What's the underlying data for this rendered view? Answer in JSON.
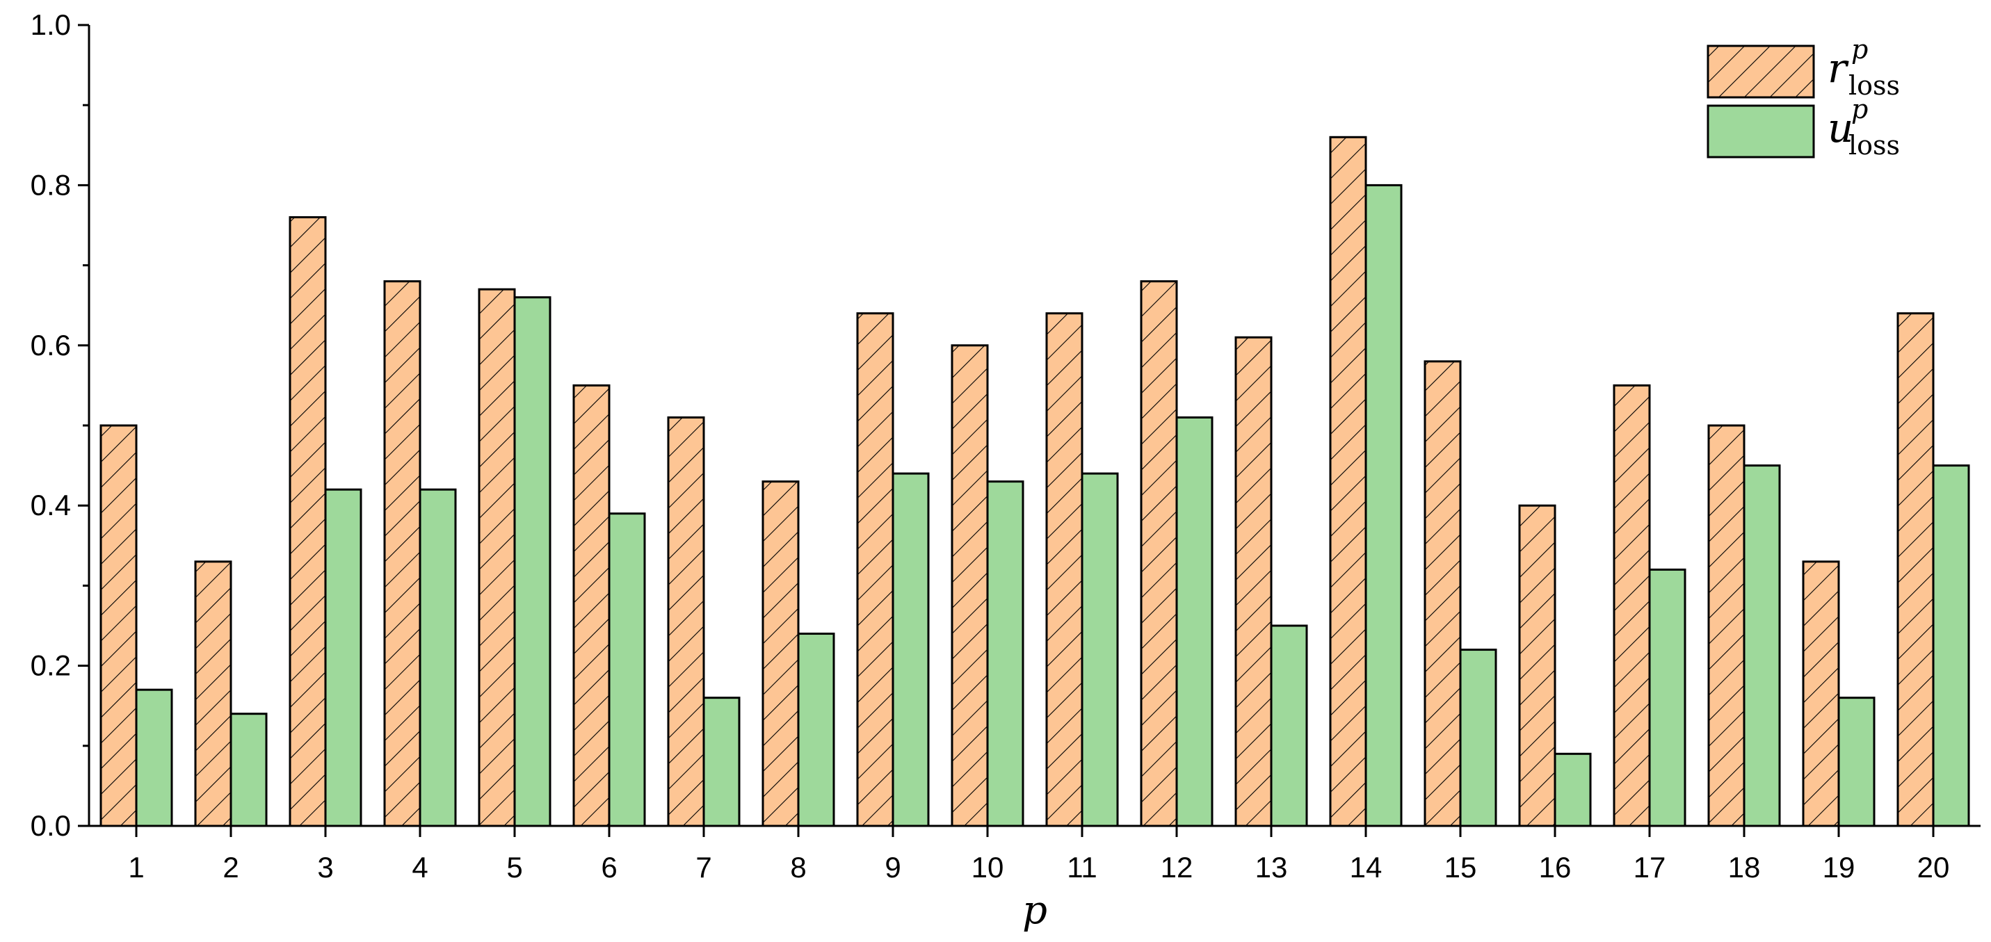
{
  "chart_data": {
    "type": "bar",
    "xlabel": "p",
    "ylabel": "",
    "ylim": [
      0,
      1.0
    ],
    "yticks": [
      "0.0",
      "0.2",
      "0.4",
      "0.6",
      "0.8",
      "1.0"
    ],
    "categories": [
      "1",
      "2",
      "3",
      "4",
      "5",
      "6",
      "7",
      "8",
      "9",
      "10",
      "11",
      "12",
      "13",
      "14",
      "15",
      "16",
      "17",
      "18",
      "19",
      "20"
    ],
    "legend_position": "top-right",
    "grid": false,
    "series": [
      {
        "name": "r",
        "sup": "p",
        "sub": "loss",
        "color": "#fdc594",
        "pattern": "diagonal-hatch",
        "values": [
          0.5,
          0.33,
          0.76,
          0.68,
          0.67,
          0.55,
          0.51,
          0.43,
          0.64,
          0.6,
          0.64,
          0.68,
          0.61,
          0.86,
          0.58,
          0.4,
          0.55,
          0.5,
          0.33,
          0.64
        ]
      },
      {
        "name": "u",
        "sup": "p",
        "sub": "loss",
        "color": "#9ed99b",
        "pattern": "solid",
        "values": [
          0.17,
          0.14,
          0.42,
          0.42,
          0.66,
          0.39,
          0.16,
          0.24,
          0.44,
          0.43,
          0.44,
          0.51,
          0.25,
          0.8,
          0.22,
          0.09,
          0.32,
          0.45,
          0.16,
          0.45
        ]
      }
    ]
  }
}
